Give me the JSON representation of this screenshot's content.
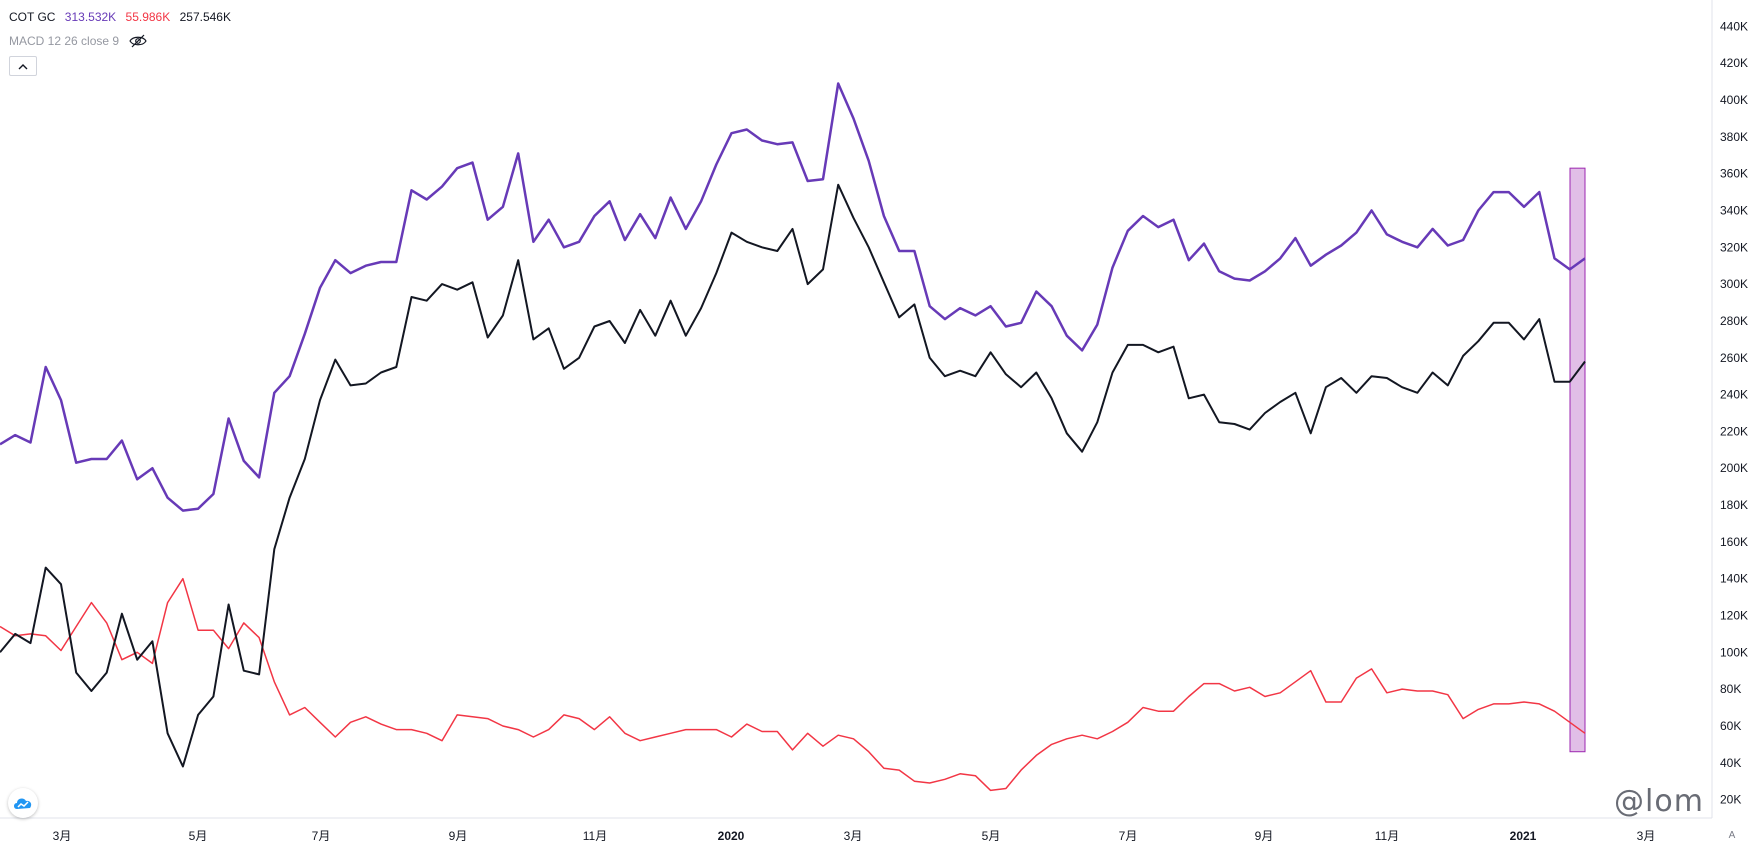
{
  "legend": {
    "symbol": "COT GC",
    "value1": "313.532K",
    "value2": "55.986K",
    "value3": "257.546K",
    "color1": "#673ab7",
    "color2": "#f23645",
    "color3": "#131722"
  },
  "indicator": {
    "label": "MACD 12 26 close 9",
    "icon": "eye-hidden-icon"
  },
  "collapse_icon": "chevron-up-icon",
  "logo_icon": "tradingview-cloud-icon",
  "watermark": "@lom",
  "axis_auto_label": "A",
  "chart_data": {
    "type": "line",
    "x_labels": [
      "3月",
      "5月",
      "7月",
      "9月",
      "11月",
      "2020",
      "3月",
      "5月",
      "7月",
      "9月",
      "11月",
      "2021",
      "3月"
    ],
    "y_labels": [
      "440K",
      "420K",
      "400K",
      "380K",
      "360K",
      "340K",
      "320K",
      "300K",
      "280K",
      "260K",
      "240K",
      "220K",
      "200K",
      "180K",
      "160K",
      "140K",
      "120K",
      "100K",
      "80K",
      "60K",
      "40K",
      "20K"
    ],
    "ylim": [
      10,
      450
    ],
    "y_unit": "K",
    "highlight": {
      "color": "#e1bee7",
      "border": "#9c27b0",
      "y_range": [
        46,
        363
      ]
    },
    "series": [
      {
        "color": "#673ab7",
        "width": 2.5,
        "values": [
          213,
          218,
          214,
          255,
          237,
          203,
          205,
          205,
          215,
          194,
          200,
          184,
          177,
          178,
          186,
          227,
          204,
          195,
          241,
          250,
          273,
          298,
          313,
          306,
          310,
          312,
          312,
          351,
          346,
          353,
          363,
          366,
          335,
          342,
          371,
          323,
          335,
          320,
          323,
          337,
          345,
          324,
          338,
          325,
          347,
          330,
          345,
          365,
          382,
          384,
          378,
          376,
          377,
          356,
          357,
          409,
          390,
          367,
          337,
          318,
          318,
          288,
          281,
          287,
          283,
          288,
          277,
          279,
          296,
          288,
          272,
          264,
          278,
          309,
          329,
          337,
          331,
          335,
          313,
          322,
          307,
          303,
          302,
          307,
          314,
          325,
          310,
          316,
          321,
          328,
          340,
          327,
          323,
          320,
          330,
          321,
          324,
          340,
          350,
          350,
          342,
          350,
          314,
          308,
          314
        ]
      },
      {
        "color": "#f23645",
        "width": 1.5,
        "values": [
          114,
          109,
          110,
          109,
          101,
          114,
          127,
          116,
          96,
          100,
          94,
          127,
          140,
          112,
          112,
          102,
          116,
          108,
          84,
          66,
          70,
          62,
          54,
          62,
          65,
          61,
          58,
          58,
          56,
          52,
          66,
          65,
          64,
          60,
          58,
          54,
          58,
          66,
          64,
          58,
          65,
          56,
          52,
          54,
          56,
          58,
          58,
          58,
          54,
          61,
          57,
          57,
          47,
          56,
          49,
          55,
          53,
          46,
          37,
          36,
          30,
          29,
          31,
          34,
          33,
          25,
          26,
          36,
          44,
          50,
          53,
          55,
          53,
          57,
          62,
          70,
          68,
          68,
          76,
          83,
          83,
          79,
          81,
          76,
          78,
          84,
          90,
          73,
          73,
          86,
          91,
          78,
          80,
          79,
          79,
          77,
          64,
          69,
          72,
          72,
          73,
          72,
          68,
          62,
          56
        ]
      },
      {
        "color": "#131722",
        "width": 2,
        "values": [
          100,
          110,
          105,
          146,
          137,
          89,
          79,
          89,
          121,
          96,
          106,
          56,
          38,
          66,
          76,
          126,
          90,
          88,
          156,
          184,
          205,
          237,
          259,
          245,
          246,
          252,
          255,
          293,
          291,
          300,
          297,
          301,
          271,
          283,
          313,
          270,
          276,
          254,
          260,
          277,
          280,
          268,
          286,
          272,
          291,
          272,
          287,
          306,
          328,
          323,
          320,
          318,
          330,
          300,
          308,
          354,
          336,
          320,
          301,
          282,
          289,
          260,
          250,
          253,
          250,
          263,
          251,
          244,
          252,
          238,
          219,
          209,
          225,
          252,
          267,
          267,
          263,
          266,
          238,
          240,
          225,
          224,
          221,
          230,
          236,
          241,
          219,
          244,
          249,
          241,
          250,
          249,
          244,
          241,
          252,
          245,
          261,
          269,
          279,
          279,
          270,
          281,
          247,
          247,
          258
        ]
      }
    ]
  }
}
